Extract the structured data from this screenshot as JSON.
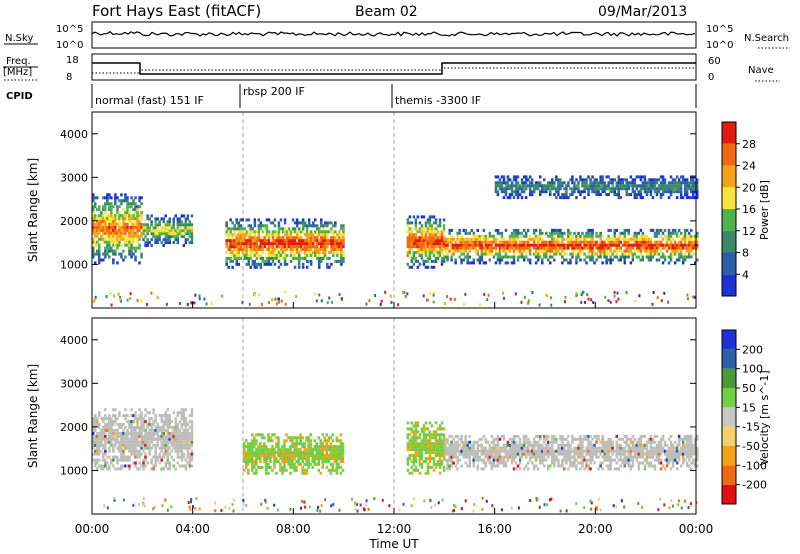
{
  "header": {
    "station": "Fort Hays East (fitACF)",
    "beam": "Beam 02",
    "date": "09/Mar/2013"
  },
  "top_panels": {
    "nsky_label": "N.Sky",
    "nsky_ticks": [
      "10^5",
      "10^0"
    ],
    "nsearch_label": "N.Search",
    "nsearch_ticks": [
      "10^5",
      "10^0"
    ],
    "freq_label": "Freq.",
    "freq_unit": "[MHz]",
    "freq_ticks": [
      "18",
      "8"
    ],
    "nave_label": "Nave",
    "nave_ticks": [
      "60",
      "0"
    ],
    "cpid_label": "CPID"
  },
  "cpid_segments": [
    {
      "label": "normal (fast) 151 IF",
      "start": 0,
      "end": 6
    },
    {
      "label": "rbsp 200 IF",
      "start": 6,
      "end": 12
    },
    {
      "label": "themis -3300 IF",
      "start": 12,
      "end": 24
    }
  ],
  "colors": {
    "power_scale": [
      "#1b33d6",
      "#2c5fa8",
      "#3a8a6a",
      "#50b24a",
      "#f5e23a",
      "#f5a21a",
      "#f06a12",
      "#e01e0e"
    ],
    "velocity_scale": [
      "#e01010",
      "#f06a12",
      "#f5a21a",
      "#f4cf6a",
      "#c8c8c4",
      "#6fcf45",
      "#4a9a3c",
      "#2c5fa8",
      "#1b33d6"
    ],
    "ground_scatter": "#bdbdb9"
  },
  "chart_data": [
    {
      "type": "heatmap",
      "title": "Power",
      "xlabel": "Time UT",
      "ylabel": "Slant Range [km]",
      "xlim": [
        0,
        24
      ],
      "ylim": [
        0,
        4500
      ],
      "x_ticks": [
        "00:00",
        "04:00",
        "08:00",
        "12:00",
        "16:00",
        "20:00",
        "00:00"
      ],
      "y_ticks": [
        "1000",
        "2000",
        "3000",
        "4000"
      ],
      "colorbar": {
        "label": "Power [dB]",
        "ticks": [
          "28",
          "24",
          "20",
          "16",
          "12",
          "8",
          "4"
        ]
      },
      "approx_echo_regions": [
        {
          "t_start": 0.0,
          "t_end": 2.0,
          "range_km": [
            1000,
            2600
          ],
          "peak_db": 24
        },
        {
          "t_start": 2.0,
          "t_end": 4.0,
          "range_km": [
            1400,
            2100
          ],
          "peak_db": 16
        },
        {
          "t_start": 5.3,
          "t_end": 10.0,
          "range_km": [
            900,
            2000
          ],
          "peak_db": 28
        },
        {
          "t_start": 12.5,
          "t_end": 14.0,
          "range_km": [
            900,
            2100
          ],
          "peak_db": 28
        },
        {
          "t_start": 14.0,
          "t_end": 24.0,
          "range_km": [
            1000,
            1800
          ],
          "peak_db": 28
        },
        {
          "t_start": 16.0,
          "t_end": 24.0,
          "range_km": [
            2500,
            3000
          ],
          "peak_db": 8
        }
      ]
    },
    {
      "type": "heatmap",
      "title": "Velocity",
      "xlabel": "Time UT",
      "ylabel": "Slant Range [km]",
      "xlim": [
        0,
        24
      ],
      "ylim": [
        0,
        4500
      ],
      "x_ticks": [
        "00:00",
        "04:00",
        "08:00",
        "12:00",
        "16:00",
        "20:00",
        "00:00"
      ],
      "y_ticks": [
        "1000",
        "2000",
        "3000",
        "4000"
      ],
      "colorbar": {
        "label": "Velocity [m s^-1]",
        "ticks": [
          "200",
          "100",
          "50",
          "15",
          "-15",
          "-50",
          "-100",
          "-200"
        ]
      },
      "approx_echo_regions": [
        {
          "t_start": 0.0,
          "t_end": 4.0,
          "range_km": [
            1000,
            2400
          ],
          "velocity": 0
        },
        {
          "t_start": 6.0,
          "t_end": 10.0,
          "range_km": [
            900,
            1800
          ],
          "velocity": 30
        },
        {
          "t_start": 12.5,
          "t_end": 14.0,
          "range_km": [
            900,
            2100
          ],
          "velocity": 50
        },
        {
          "t_start": 14.0,
          "t_end": 24.0,
          "range_km": [
            1000,
            1800
          ],
          "velocity": 0
        }
      ]
    }
  ]
}
